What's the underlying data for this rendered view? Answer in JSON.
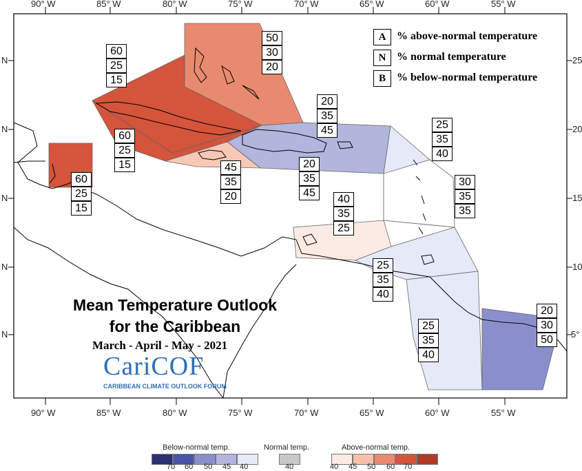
{
  "map": {
    "title_line1": "Mean Temperature Outlook",
    "title_line2": "for the Caribbean",
    "period": "March - April - May - 2021",
    "logo_text": "CariCOF",
    "logo_subtitle": "CARIBBEAN CLIMATE OUTLOOK FORUM",
    "lon_labels": [
      "90° W",
      "85° W",
      "80° W",
      "75° W",
      "70° W",
      "65° W",
      "60° W",
      "55° W"
    ],
    "lat_left_label": "N",
    "lat_right_labels": [
      "25",
      "20",
      "15",
      "10",
      "5°"
    ]
  },
  "key": {
    "items": [
      {
        "letter": "A",
        "text": "% above-normal temperature"
      },
      {
        "letter": "N",
        "text": "% normal temperature"
      },
      {
        "letter": "B",
        "text": "% below-normal temperature"
      }
    ]
  },
  "regions": [
    {
      "id": "bahamas",
      "values": [
        "50",
        "30",
        "20"
      ],
      "color": "#e88a70"
    },
    {
      "id": "cuba-north",
      "values": [
        "60",
        "25",
        "15"
      ],
      "color": "#d4543c"
    },
    {
      "id": "cuba-south",
      "values": [
        "60",
        "25",
        "15"
      ],
      "color": "#d4543c"
    },
    {
      "id": "belize",
      "values": [
        "60",
        "25",
        "15"
      ],
      "color": "#d4543c"
    },
    {
      "id": "jamaica",
      "values": [
        "45",
        "35",
        "20"
      ],
      "color": "#f8c8b6"
    },
    {
      "id": "hispaniola-north",
      "values": [
        "20",
        "35",
        "45"
      ],
      "color": "#b2b5dc"
    },
    {
      "id": "hispaniola-south",
      "values": [
        "20",
        "35",
        "45"
      ],
      "color": "#b2b5dc"
    },
    {
      "id": "leeward",
      "values": [
        "25",
        "35",
        "40"
      ],
      "color": "#e6e9f7"
    },
    {
      "id": "windward",
      "values": [
        "30",
        "35",
        "35"
      ],
      "color": "#ffffff"
    },
    {
      "id": "abc-islands",
      "values": [
        "40",
        "35",
        "25"
      ],
      "color": "#fcebe5"
    },
    {
      "id": "trinidad",
      "values": [
        "25",
        "35",
        "40"
      ],
      "color": "#e6e9f7"
    },
    {
      "id": "guyana",
      "values": [
        "25",
        "35",
        "40"
      ],
      "color": "#e6e9f7"
    },
    {
      "id": "suriname",
      "values": [
        "20",
        "30",
        "50"
      ],
      "color": "#8a8fcc"
    }
  ],
  "colorbar": {
    "below_title": "Below-normal temp.",
    "normal_title": "Normal temp.",
    "above_title": "Above-normal temp.",
    "below_colors": [
      "#2b3170",
      "#4a55a8",
      "#8a8fcc",
      "#b2b5dc",
      "#e6e9f7"
    ],
    "normal_color": "#c8c8c8",
    "above_colors": [
      "#fcebe5",
      "#f8c0aa",
      "#e88a70",
      "#d4543c",
      "#b03a28"
    ],
    "below_ticks": [
      "70",
      "60",
      "50",
      "45",
      "40"
    ],
    "normal_ticks": [
      "40"
    ],
    "above_ticks": [
      "40",
      "45",
      "50",
      "60",
      "70"
    ]
  }
}
